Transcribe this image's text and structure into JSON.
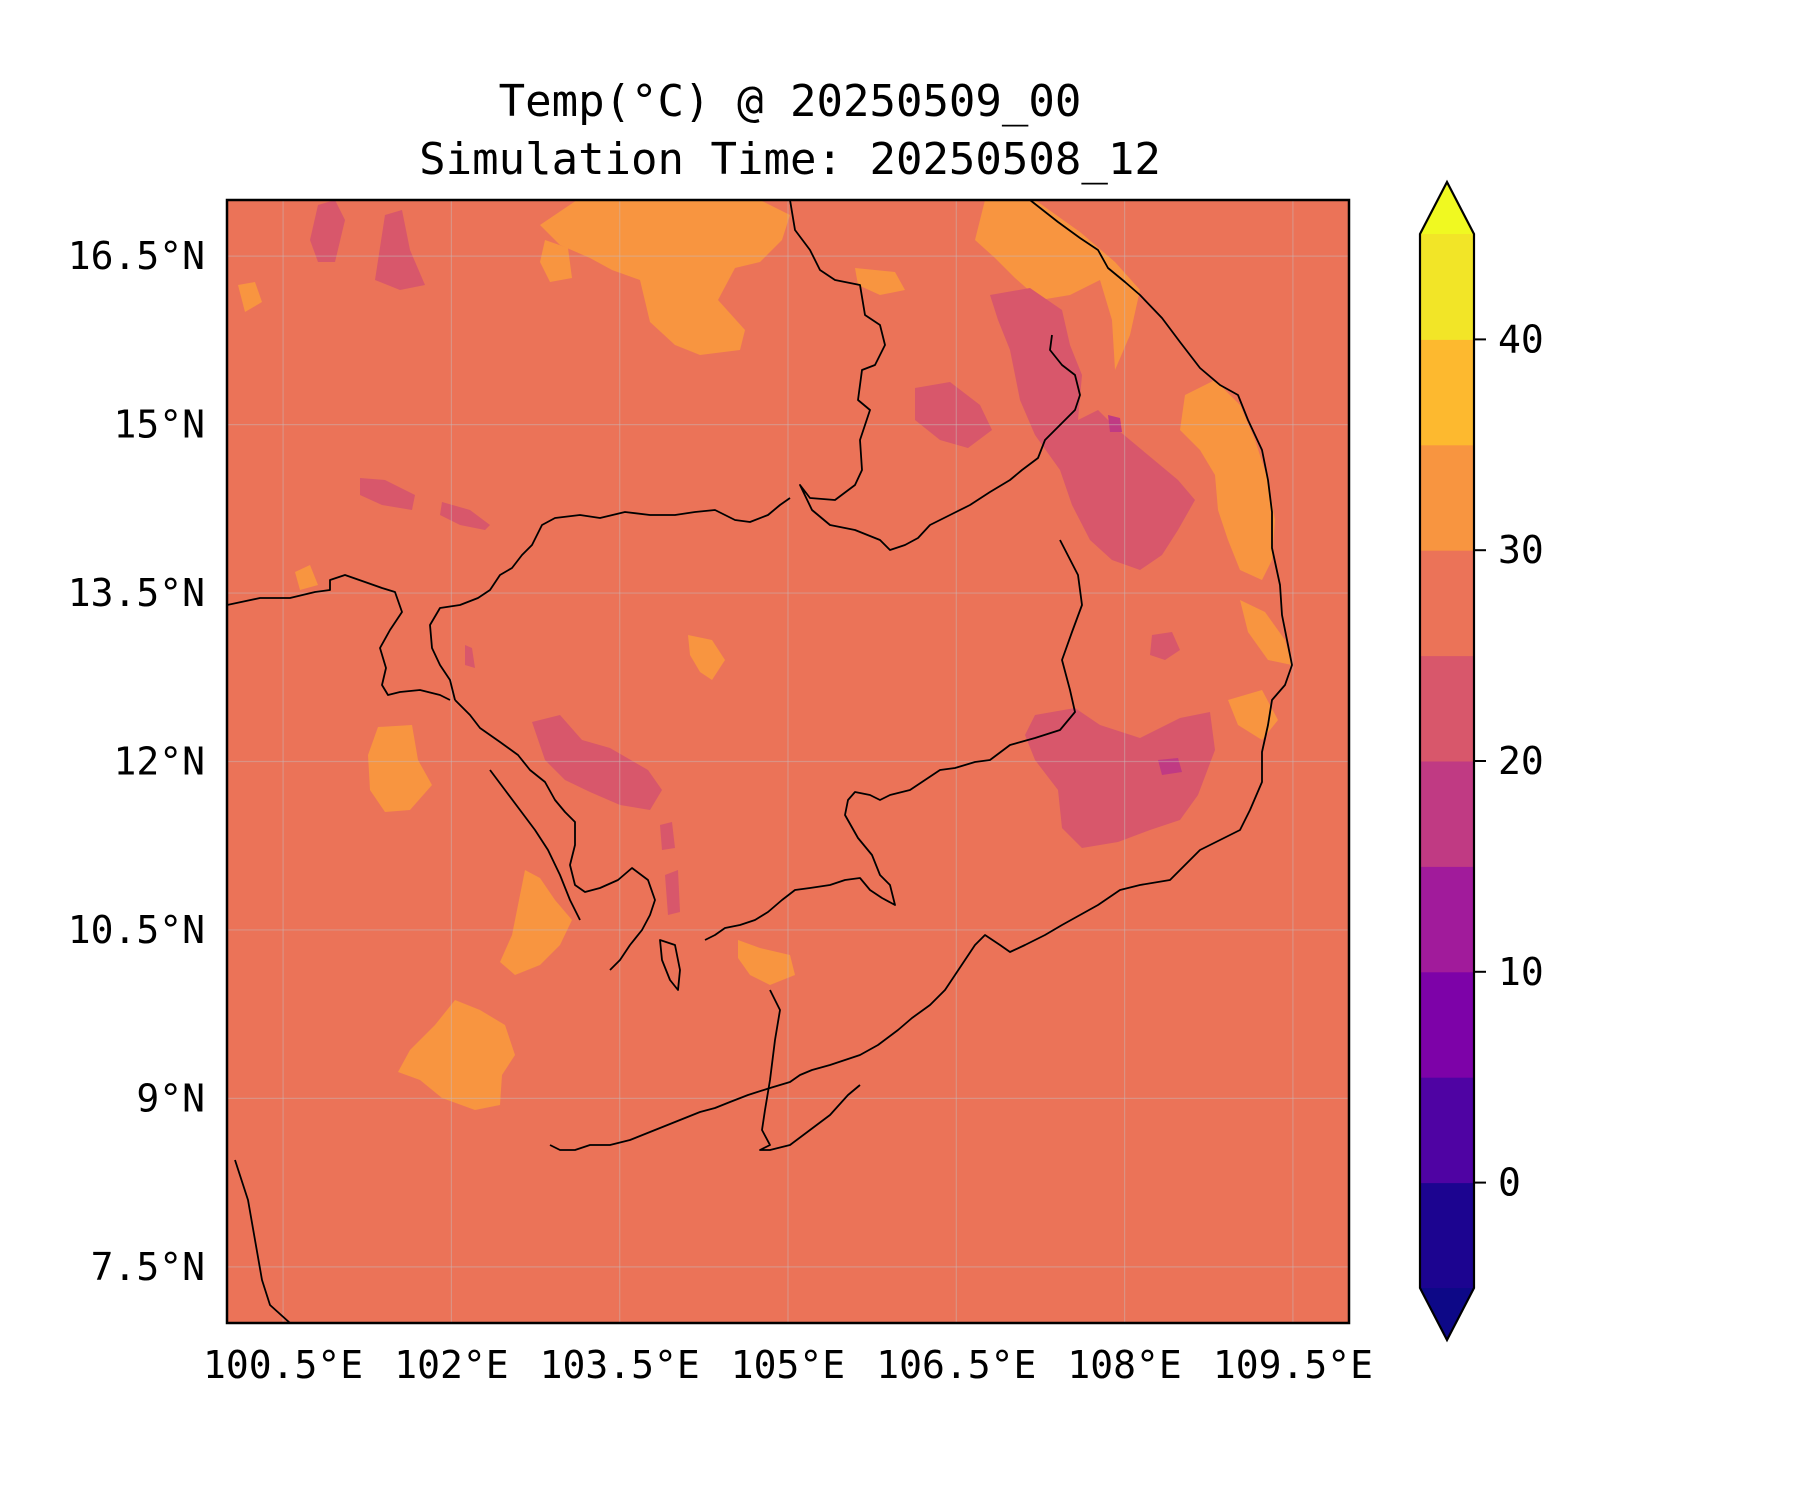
{
  "title": "Temp(°C) @ 20250509_00",
  "subtitle": "Simulation Time: 20250508_12",
  "map": {
    "extent": {
      "lon": [
        100.0,
        110.0
      ],
      "lat": [
        7.0,
        17.0
      ]
    },
    "grid": true,
    "background_class": "25–30 °C",
    "background_color": "#eb7358",
    "lon_ticks": [
      "100.5°E",
      "102°E",
      "103.5°E",
      "105°E",
      "106.5°E",
      "108°E",
      "109.5°E"
    ],
    "lat_ticks": [
      "16.5°N",
      "15°N",
      "13.5°N",
      "12°N",
      "10.5°N",
      "9°N",
      "7.5°N"
    ]
  },
  "colorbar": {
    "extend": "both",
    "levels": [
      -5,
      0,
      5,
      10,
      15,
      20,
      25,
      30,
      35,
      40,
      45
    ],
    "colors": [
      "#1c0490",
      "#4f03a3",
      "#7d02a8",
      "#a11b9b",
      "#c03a83",
      "#d8576b",
      "#eb7358",
      "#f89540",
      "#fdb92f",
      "#f2e527"
    ],
    "under_color": "#0d0887",
    "over_color": "#f0f921",
    "tick_labels": [
      "0",
      "10",
      "20",
      "30",
      "40"
    ]
  }
}
